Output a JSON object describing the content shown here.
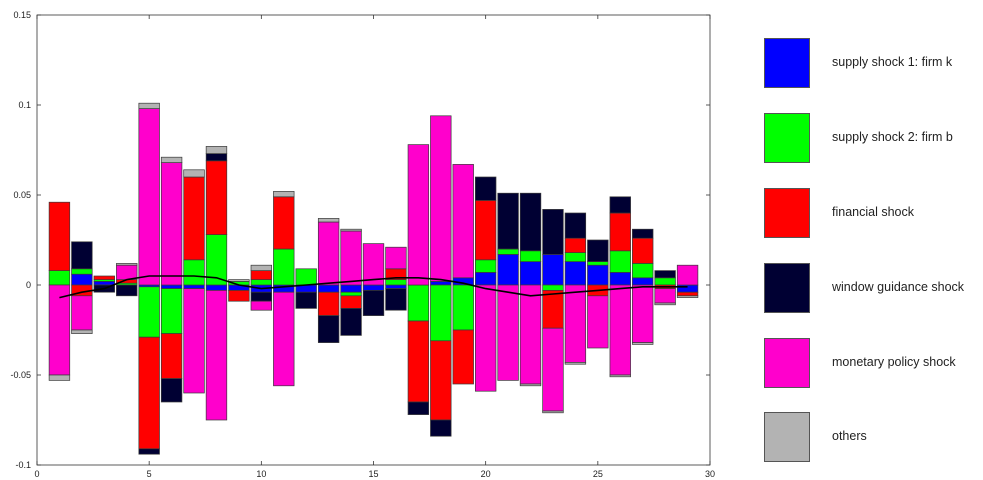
{
  "chart_data": {
    "type": "bar",
    "subtype": "stacked-diverging-with-line",
    "title": "",
    "xlabel": "",
    "ylabel": "",
    "xlim": [
      0,
      30
    ],
    "ylim": [
      -0.1,
      0.15
    ],
    "xticks": [
      0,
      5,
      10,
      15,
      20,
      25,
      30
    ],
    "yticks": [
      -0.1,
      -0.05,
      0,
      0.05,
      0.1,
      0.15
    ],
    "ytick_labels": [
      "-0.1",
      "-0.05",
      "0",
      "0.05",
      "0.1",
      "0.15"
    ],
    "grid": false,
    "legend_position": "right",
    "x": [
      1,
      2,
      3,
      4,
      5,
      6,
      7,
      8,
      9,
      10,
      11,
      12,
      13,
      14,
      15,
      16,
      17,
      18,
      19,
      20,
      21,
      22,
      23,
      24,
      25,
      26,
      27,
      28,
      29
    ],
    "series": [
      {
        "name": "supply shock 1: firm k",
        "color": "#0000ff",
        "values": [
          0.0,
          0.006,
          0.002,
          0.0,
          -0.001,
          -0.002,
          -0.002,
          -0.003,
          -0.003,
          -0.004,
          -0.004,
          -0.004,
          -0.004,
          -0.004,
          -0.003,
          -0.002,
          0.0,
          0.002,
          0.004,
          0.007,
          0.017,
          0.013,
          0.017,
          0.013,
          0.011,
          0.007,
          0.004,
          0.0,
          -0.004
        ]
      },
      {
        "name": "supply shock 2: firm b",
        "color": "#00ff00",
        "values": [
          0.008,
          0.003,
          0.001,
          0.001,
          -0.028,
          -0.025,
          0.014,
          0.028,
          0.002,
          0.003,
          0.02,
          0.009,
          0.0,
          -0.002,
          0.0,
          0.003,
          -0.02,
          -0.031,
          -0.025,
          0.007,
          0.003,
          0.006,
          -0.003,
          0.005,
          0.002,
          0.012,
          0.008,
          0.004,
          0.0
        ]
      },
      {
        "name": "financial shock",
        "color": "#ff0000",
        "values": [
          0.038,
          -0.006,
          0.002,
          0.002,
          -0.062,
          -0.025,
          0.046,
          0.041,
          -0.006,
          0.005,
          0.029,
          0.0,
          -0.013,
          -0.007,
          0.0,
          0.006,
          -0.045,
          -0.044,
          -0.03,
          0.033,
          0.0,
          0.0,
          -0.021,
          0.008,
          -0.006,
          0.021,
          0.014,
          -0.002,
          -0.002
        ]
      },
      {
        "name": "window guidance shock",
        "color": "#000033",
        "values": [
          0.0,
          0.015,
          -0.004,
          -0.006,
          -0.003,
          -0.013,
          0.0,
          0.004,
          0.0,
          -0.005,
          0.0,
          -0.009,
          -0.015,
          -0.015,
          -0.014,
          -0.012,
          -0.007,
          -0.009,
          0.0,
          0.013,
          0.031,
          0.032,
          0.025,
          0.014,
          0.012,
          0.009,
          0.005,
          0.004,
          0.0
        ]
      },
      {
        "name": "monetary policy shock",
        "color": "#ff00cc",
        "values": [
          -0.05,
          -0.019,
          0.0,
          0.008,
          0.098,
          0.068,
          -0.058,
          -0.072,
          0.0,
          -0.005,
          -0.052,
          0.0,
          0.035,
          0.03,
          0.023,
          0.012,
          0.078,
          0.092,
          0.063,
          -0.059,
          -0.053,
          -0.055,
          -0.046,
          -0.043,
          -0.029,
          -0.05,
          -0.032,
          -0.008,
          0.011
        ]
      },
      {
        "name": "others",
        "color": "#b3b3b3",
        "values": [
          -0.003,
          -0.002,
          0.0,
          0.001,
          0.003,
          0.003,
          0.004,
          0.004,
          0.001,
          0.003,
          0.003,
          0.0,
          0.002,
          0.001,
          0.0,
          0.0,
          0.0,
          0.0,
          0.0,
          0.0,
          0.0,
          -0.001,
          -0.001,
          -0.001,
          0.0,
          -0.001,
          -0.001,
          -0.001,
          -0.001
        ]
      }
    ],
    "line": {
      "color": "#000000",
      "values": [
        -0.007,
        -0.004,
        -0.002,
        0.003,
        0.005,
        0.005,
        0.005,
        0.004,
        0.0,
        -0.002,
        -0.001,
        0.0,
        0.001,
        0.002,
        0.003,
        0.004,
        0.004,
        0.003,
        0.001,
        -0.002,
        -0.004,
        -0.006,
        -0.005,
        -0.004,
        -0.003,
        -0.002,
        -0.001,
        -0.001,
        -0.001
      ]
    }
  }
}
